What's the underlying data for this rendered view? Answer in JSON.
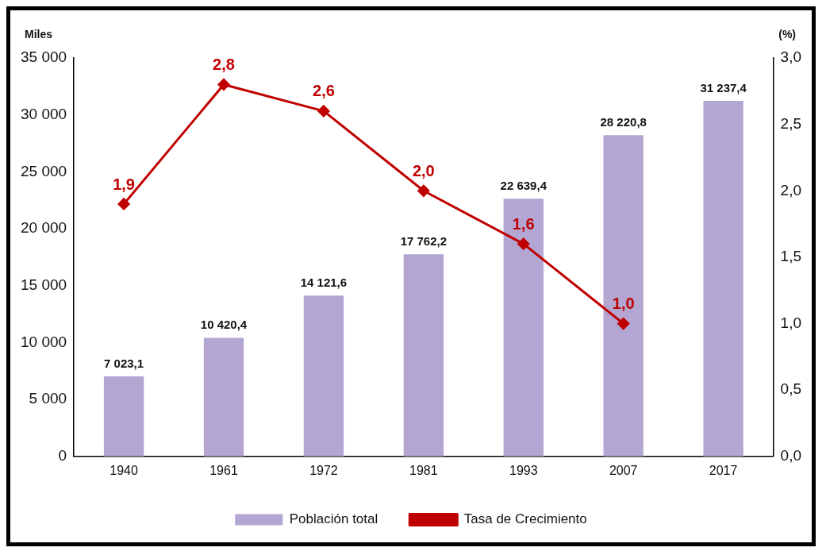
{
  "chart_data": {
    "type": "bar",
    "categories": [
      "1940",
      "1961",
      "1972",
      "1981",
      "1993",
      "2007",
      "2017"
    ],
    "ylabel": "Miles",
    "y2label": "(%)",
    "ylim": [
      0,
      35000
    ],
    "yticks": [
      {
        "value": 0,
        "label": "0"
      },
      {
        "value": 5000,
        "label": "5 000"
      },
      {
        "value": 10000,
        "label": "10 000"
      },
      {
        "value": 15000,
        "label": "15 000"
      },
      {
        "value": 20000,
        "label": "20 000"
      },
      {
        "value": 25000,
        "label": "25 000"
      },
      {
        "value": 30000,
        "label": "30 000"
      },
      {
        "value": 35000,
        "label": "35 000"
      }
    ],
    "y2lim": [
      0,
      3
    ],
    "y2ticks": [
      {
        "value": 0,
        "label": "0,0"
      },
      {
        "value": 0.5,
        "label": "0,5"
      },
      {
        "value": 1,
        "label": "1,0"
      },
      {
        "value": 1.5,
        "label": "1,5"
      },
      {
        "value": 2,
        "label": "2,0"
      },
      {
        "value": 2.5,
        "label": "2,5"
      },
      {
        "value": 3,
        "label": "3,0"
      }
    ],
    "series": [
      {
        "name": "Población total",
        "color": "#b3a6d3",
        "values": [
          7023.1,
          10420.4,
          14121.6,
          17762.2,
          22639.4,
          28220.8,
          31237.4
        ],
        "value_labels": [
          "7 023,1",
          "10 420,4",
          "14 121,6",
          "17 762,2",
          "22 639,4",
          "28 220,8",
          "31 237,4"
        ]
      },
      {
        "name": "Tasa de Crecimiento",
        "type": "line",
        "axis": "y2",
        "color": "#c00000",
        "values": [
          1.9,
          2.8,
          2.6,
          2.0,
          1.6,
          1.0,
          null
        ],
        "value_labels": [
          "1,9",
          "2,8",
          "2,6",
          "2,0",
          "1,6",
          "1,0",
          null
        ],
        "marker": "diamond",
        "line_style": "solid"
      }
    ],
    "grid": false,
    "legend": "bottom"
  }
}
